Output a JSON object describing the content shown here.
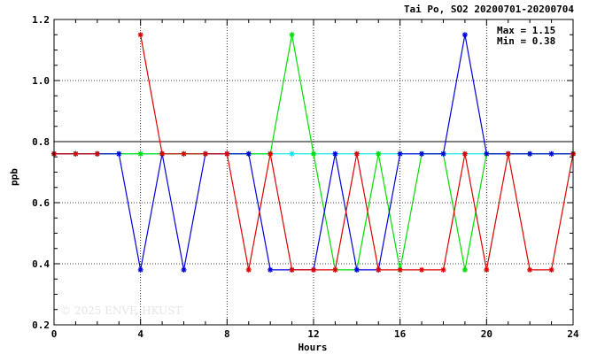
{
  "chart_data": {
    "type": "line",
    "title": "Tai Po, SO2 20200701-20200704",
    "stats": {
      "max": "Max = 1.15",
      "min": "Min = 0.38"
    },
    "watermark": "© 2025 ENVF, HKUST",
    "xlabel": "Hours",
    "ylabel": "ppb",
    "xlim": [
      0,
      24
    ],
    "ylim": [
      0.2,
      1.2
    ],
    "xticks": [
      0,
      4,
      8,
      12,
      16,
      20,
      24
    ],
    "yticks": [
      0.2,
      0.4,
      0.6,
      0.8,
      1.0,
      1.2
    ],
    "xtick_labels": [
      "0",
      "4",
      "8",
      "12",
      "16",
      "20",
      "24"
    ],
    "ytick_labels": [
      "0.2",
      "0.4",
      "0.6",
      "0.8",
      "1.0",
      "1.2"
    ],
    "grid": true,
    "reference_line": {
      "y": 0.8
    },
    "x": [
      0,
      1,
      2,
      3,
      4,
      5,
      6,
      7,
      8,
      9,
      10,
      11,
      12,
      13,
      14,
      15,
      16,
      17,
      18,
      19,
      20,
      21,
      22,
      23,
      24
    ],
    "series": [
      {
        "color": "#00e5e5",
        "values": [
          0.76,
          0.76,
          0.76,
          0.76,
          0.76,
          0.76,
          0.76,
          0.76,
          0.76,
          0.76,
          0.76,
          0.76,
          0.76,
          0.76,
          0.76,
          0.76,
          0.76,
          0.76,
          0.76,
          0.76,
          0.76,
          0.76,
          0.76,
          0.76,
          0.76
        ]
      },
      {
        "color": "#00dd00",
        "values": [
          0.76,
          0.76,
          0.76,
          0.76,
          0.76,
          0.76,
          0.76,
          0.76,
          0.76,
          0.76,
          0.76,
          1.15,
          0.76,
          0.38,
          0.38,
          0.76,
          0.38,
          0.76,
          0.76,
          0.38,
          0.76,
          0.76,
          0.76,
          0.76,
          0.76
        ]
      },
      {
        "color": "#0000dd",
        "values": [
          0.76,
          0.76,
          0.76,
          0.76,
          0.38,
          0.76,
          0.38,
          0.76,
          0.76,
          0.76,
          0.38,
          0.38,
          0.38,
          0.76,
          0.38,
          0.38,
          0.76,
          0.76,
          0.76,
          1.15,
          0.76,
          0.76,
          0.76,
          0.76,
          0.76
        ]
      },
      {
        "color": "#dd0000",
        "values": [
          0.76,
          0.76,
          0.76,
          null,
          1.15,
          0.76,
          0.76,
          0.76,
          0.76,
          0.38,
          0.76,
          0.38,
          0.38,
          0.38,
          0.76,
          0.38,
          0.38,
          0.38,
          0.38,
          0.76,
          0.38,
          0.76,
          0.38,
          0.38,
          0.76
        ]
      }
    ]
  }
}
